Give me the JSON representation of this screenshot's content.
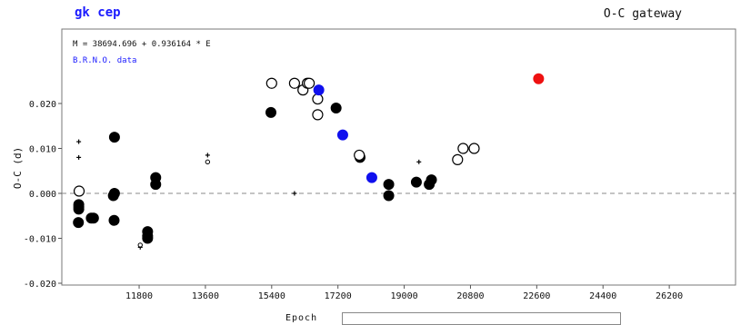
{
  "header": {
    "star_name": "gk cep",
    "gateway": "O-C gateway"
  },
  "legend": {
    "elements": "M = 38694.696 + 0.936164 * E",
    "source": "B.R.N.O. data"
  },
  "chart_data": {
    "type": "scatter",
    "title": "gk cep",
    "xlabel": "Epoch",
    "ylabel": "O-C (d)",
    "xlim": [
      9700,
      28000
    ],
    "ylim": [
      -0.02,
      0.03
    ],
    "xticks": [
      11800,
      13600,
      15400,
      17200,
      19000,
      20800,
      22600,
      24400,
      26200
    ],
    "xtick_labels": [
      "11800",
      "13600",
      "15400",
      "17200",
      "19000",
      "20800",
      "22600",
      "24400",
      "26200"
    ],
    "yticks": [
      -0.02,
      -0.01,
      0.0,
      0.01,
      0.02
    ],
    "ytick_labels": [
      "-0.020",
      "-0.010",
      "0.000",
      "0.010",
      "0.020"
    ],
    "zero_line": true,
    "colors": {
      "filled": "#000000",
      "blue": "#1010ee",
      "red": "#ee1111",
      "open": "#000000"
    },
    "series": [
      {
        "marker": "filled-circle",
        "color": "#000000",
        "points": [
          [
            10160,
            -0.0025
          ],
          [
            10160,
            -0.003
          ],
          [
            10160,
            -0.0035
          ],
          [
            10150,
            -0.0065
          ],
          [
            10500,
            -0.0055
          ],
          [
            10560,
            -0.0055
          ],
          [
            11130,
            0.0125
          ],
          [
            11130,
            0.0
          ],
          [
            11100,
            -0.0005
          ],
          [
            11120,
            -0.006
          ],
          [
            12030,
            -0.0085
          ],
          [
            12030,
            -0.0095
          ],
          [
            12030,
            -0.01
          ],
          [
            12250,
            0.0035
          ],
          [
            12250,
            0.002
          ],
          [
            15380,
            0.018
          ],
          [
            17150,
            0.019
          ],
          [
            17800,
            0.008
          ],
          [
            18580,
            0.002
          ],
          [
            18580,
            -0.0005
          ],
          [
            19330,
            0.0025
          ],
          [
            19680,
            0.002
          ],
          [
            19740,
            0.003
          ]
        ]
      },
      {
        "marker": "open-circle",
        "color": "#000000",
        "points": [
          [
            10170,
            0.0005
          ],
          [
            15400,
            0.0245
          ],
          [
            16020,
            0.0245
          ],
          [
            16250,
            0.023
          ],
          [
            16370,
            0.0245
          ],
          [
            16420,
            0.0245
          ],
          [
            16650,
            0.021
          ],
          [
            16650,
            0.0175
          ],
          [
            17780,
            0.0085
          ],
          [
            20450,
            0.0075
          ],
          [
            20600,
            0.01
          ],
          [
            20900,
            0.01
          ]
        ]
      },
      {
        "marker": "filled-circle",
        "color": "#1010ee",
        "points": [
          [
            16680,
            0.023
          ],
          [
            17330,
            0.013
          ],
          [
            18120,
            0.0035
          ]
        ]
      },
      {
        "marker": "filled-circle",
        "color": "#ee1111",
        "points": [
          [
            22650,
            0.0255
          ]
        ]
      },
      {
        "marker": "plus",
        "color": "#000000",
        "points": [
          [
            10160,
            0.0115
          ],
          [
            10160,
            0.008
          ],
          [
            11830,
            -0.012
          ],
          [
            13660,
            0.0085
          ],
          [
            16020,
            0.0
          ],
          [
            19400,
            0.007
          ]
        ]
      },
      {
        "marker": "small-open-circle",
        "color": "#000000",
        "points": [
          [
            11830,
            -0.0115
          ],
          [
            13660,
            0.007
          ]
        ]
      }
    ]
  }
}
